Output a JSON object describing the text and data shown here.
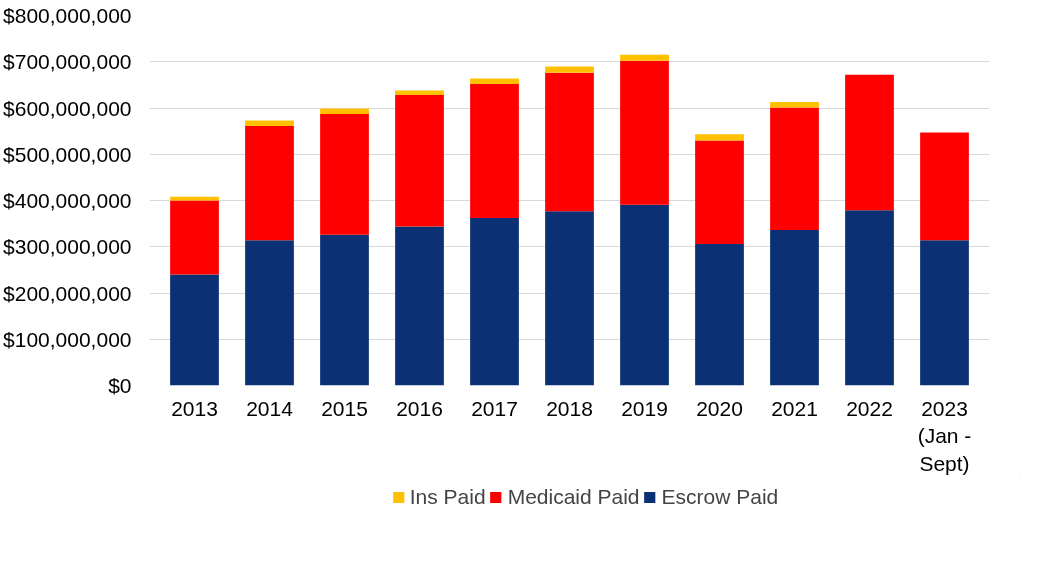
{
  "chart_data": {
    "type": "bar",
    "stacked": true,
    "categories": [
      "2013",
      "2014",
      "2015",
      "2016",
      "2017",
      "2018",
      "2019",
      "2020",
      "2021",
      "2022",
      "2023 (Jan - Sept)"
    ],
    "series": [
      {
        "name": "Escrow Paid",
        "color": "#0b3174",
        "values": [
          240000000,
          314000000,
          326000000,
          344000000,
          362000000,
          377000000,
          391000000,
          306000000,
          336000000,
          379000000,
          314000000
        ]
      },
      {
        "name": "Medicaid Paid",
        "color": "#ff0000",
        "values": [
          160000000,
          247000000,
          261000000,
          284000000,
          290000000,
          299000000,
          311000000,
          224000000,
          265000000,
          293000000,
          233000000
        ]
      },
      {
        "name": "Ins Paid",
        "color": "#ffc000",
        "values": [
          8000000,
          12000000,
          12000000,
          10000000,
          12000000,
          14000000,
          13000000,
          13000000,
          12000000,
          0,
          0
        ]
      }
    ],
    "ylim": [
      0,
      800000000
    ],
    "yticks": [
      {
        "value": 0,
        "label": "$0"
      },
      {
        "value": 100000000,
        "label": "$100,000,000"
      },
      {
        "value": 200000000,
        "label": "$200,000,000"
      },
      {
        "value": 300000000,
        "label": "$300,000,000"
      },
      {
        "value": 400000000,
        "label": "$400,000,000"
      },
      {
        "value": 500000000,
        "label": "$500,000,000"
      },
      {
        "value": 600000000,
        "label": "$600,000,000"
      },
      {
        "value": 700000000,
        "label": "$700,000,000"
      },
      {
        "value": 800000000,
        "label": "$800,000,000"
      }
    ],
    "grid": "y",
    "legend": "bottom"
  }
}
